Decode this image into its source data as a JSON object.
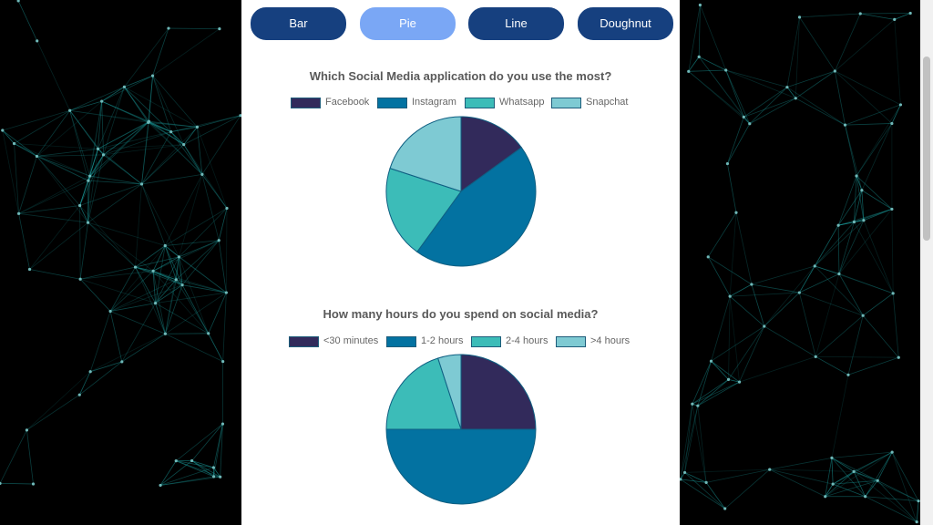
{
  "tabs": [
    {
      "label": "Bar",
      "active": false
    },
    {
      "label": "Pie",
      "active": true
    },
    {
      "label": "Line",
      "active": false
    },
    {
      "label": "Doughnut",
      "active": false
    }
  ],
  "colors": {
    "tab_default": "#16407f",
    "tab_active": "#7aa7f5",
    "slice_stroke": "#0f5f82",
    "background": "#000000",
    "network_line": "#1a9e9e",
    "network_node": "#6fb8b8"
  },
  "chart_data": [
    {
      "type": "pie",
      "title": "Which Social Media application do you use the most?",
      "categories": [
        "Facebook",
        "Instagram",
        "Whatsapp",
        "Snapchat"
      ],
      "values": [
        15,
        45,
        20,
        20
      ],
      "colors": [
        "#322a5b",
        "#0372a1",
        "#3cbcb8",
        "#7ecad3"
      ],
      "legend": "top"
    },
    {
      "type": "pie",
      "title": "How many hours do you spend on social media?",
      "categories": [
        "<30 minutes",
        "1-2 hours",
        "2-4 hours",
        ">4 hours"
      ],
      "values": [
        25,
        50,
        20,
        5
      ],
      "colors": [
        "#322a5b",
        "#0372a1",
        "#3cbcb8",
        "#7ecad3"
      ],
      "legend": "top"
    }
  ]
}
